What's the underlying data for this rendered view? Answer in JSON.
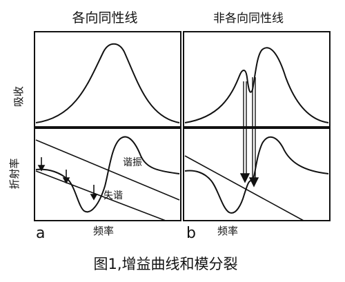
{
  "figure": {
    "caption": "图1,增益曲线和模分裂",
    "panel_a": {
      "title": "各向同性线",
      "letter": "a",
      "xlabel": "频率",
      "ylabel_top": "吸收",
      "ylabel_bottom": "折射率",
      "label_resonance": "谐振",
      "label_offresonance": "失谐"
    },
    "panel_b": {
      "title": "非各向同性线",
      "letter": "b",
      "xlabel": "频率"
    }
  },
  "colors": {
    "ink": "#111111",
    "frame": "#111111",
    "paper": "#ffffff"
  }
}
